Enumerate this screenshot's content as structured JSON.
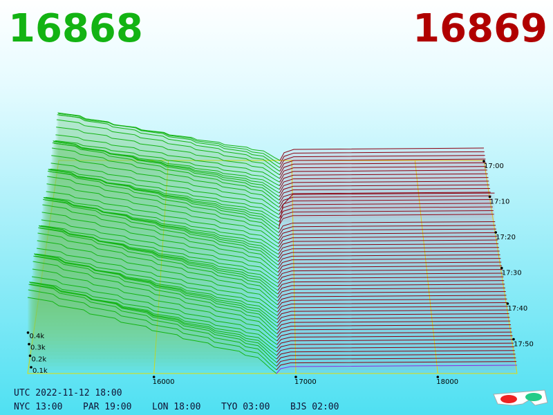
{
  "header": {
    "bid": "16868",
    "ask": "16869"
  },
  "axes": {
    "depth_ticks": [
      "0.1k",
      "0.2k",
      "0.3k",
      "0.4k"
    ],
    "price_ticks": [
      "16000",
      "17000",
      "18000"
    ],
    "time_ticks": [
      "17:00",
      "17:10",
      "17:20",
      "17:30",
      "17:40",
      "17:50"
    ]
  },
  "footer": {
    "utc": "UTC 2022-11-12 18:00",
    "zones": [
      "NYC 13:00",
      "PAR 19:00",
      "LON 18:00",
      "TYO 03:00",
      "BJS 02:00"
    ]
  }
}
